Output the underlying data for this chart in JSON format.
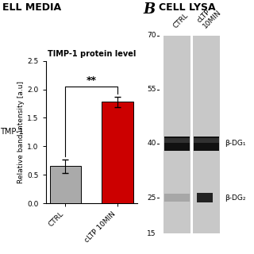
{
  "panel_a_title": "ELL MEDIA",
  "panel_b_title": "CELL LYSA",
  "bar_title": "TIMP-1 protein level",
  "categories": [
    "CTRL",
    "cLTP 10MIN"
  ],
  "values": [
    0.65,
    1.78
  ],
  "errors": [
    0.12,
    0.09
  ],
  "bar_colors": [
    "#aaaaaa",
    "#cc0000"
  ],
  "ylabel": "Relative band intensity [a.u]",
  "ylim": [
    0,
    2.5
  ],
  "yticks": [
    0.0,
    0.5,
    1.0,
    1.5,
    2.0,
    2.5
  ],
  "sig_text": "**",
  "panel_b_label": "B",
  "tmp1_label": "TMP-1",
  "mw_markers": [
    70,
    55,
    40,
    25,
    15
  ],
  "band_label_40": "β-DG₁",
  "band_label_25": "β-DG₂",
  "bg_color": "#ffffff",
  "gel_bg": "#c8c8c8"
}
